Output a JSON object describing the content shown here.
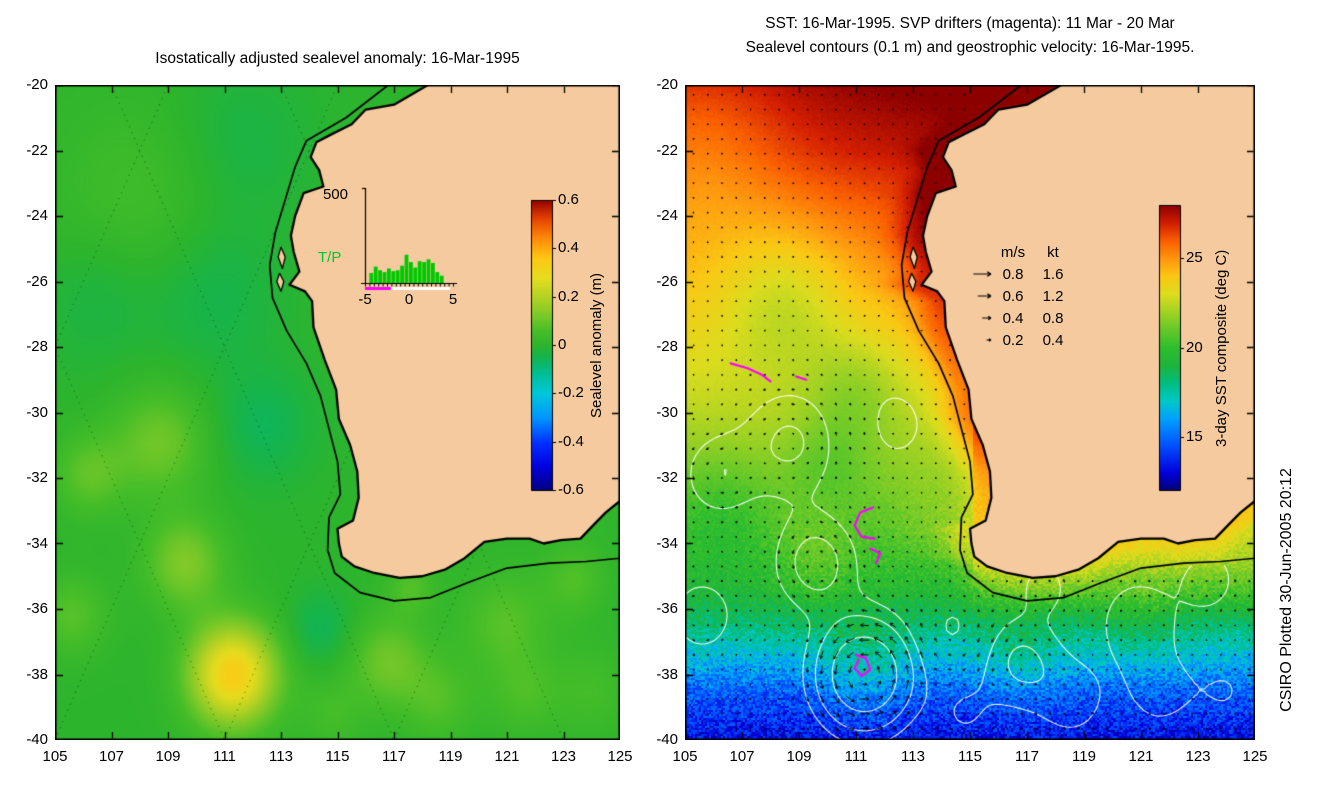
{
  "window": {
    "credit": "CSIRO Plotted 30-Jun-2005 20:12"
  },
  "axes": {
    "xlim": [
      105,
      125
    ],
    "ylim": [
      -40,
      -20
    ],
    "xticks": [
      105,
      107,
      109,
      111,
      113,
      115,
      117,
      119,
      121,
      123,
      125
    ],
    "yticks": [
      -20,
      -22,
      -24,
      -26,
      -28,
      -30,
      -32,
      -34,
      -36,
      -38,
      -40
    ]
  },
  "colors": {
    "land": "#F4CA9E",
    "coast": "#000000",
    "contour": "#FFFFFF",
    "drifter": "#FF00FF",
    "arrow": "#000000"
  },
  "left_panel": {
    "title": "Isostatically adjusted sealevel anomaly: 16-Mar-1995",
    "colorbar": {
      "label": "Sealevel anomaly (m)",
      "ticks": [
        0.6,
        0.4,
        0.2,
        0,
        -0.2,
        -0.4,
        -0.6
      ],
      "tick_labels": [
        "0.6",
        "0.4",
        "0.2",
        "0",
        "-0.2",
        "-0.4",
        "-0.6"
      ],
      "min": -0.6,
      "max": 0.6
    },
    "inset": {
      "ytop_label": "500",
      "series_label": "T/P",
      "series_label_color": "#00C832",
      "xtick_labels": [
        "-5",
        "0",
        "5"
      ],
      "bar_color": "#00C800",
      "underline_left_color": "#FF00FF",
      "underline_right_color": "#FFFFFF"
    }
  },
  "right_panel": {
    "title_line1": "SST: 16-Mar-1995. SVP drifters (magenta): 11 Mar - 20 Mar",
    "title_line2": "Sealevel contours (0.1 m) and geostrophic velocity: 16-Mar-1995.",
    "colorbar": {
      "label": "3-day SST composite (deg C)",
      "ticks": [
        25,
        20,
        15
      ],
      "tick_labels": [
        "25",
        "20",
        "15"
      ],
      "min": 12,
      "max": 28
    },
    "velocity_legend": {
      "headers": [
        "m/s",
        "kt"
      ],
      "rows": [
        [
          "0.8",
          "1.6"
        ],
        [
          "0.6",
          "1.2"
        ],
        [
          "0.4",
          "0.8"
        ],
        [
          "0.2",
          "0.4"
        ]
      ]
    }
  },
  "chart_data": [
    {
      "type": "heatmap",
      "panel": "left",
      "title": "Isostatically adjusted sealevel anomaly: 16-Mar-1995",
      "variable": "sealevel anomaly",
      "units": "m",
      "xlim": [
        105,
        125
      ],
      "ylim": [
        -40,
        -20
      ],
      "colorbar_range": [
        -0.6,
        0.6
      ],
      "colorbar_ticks": [
        0.6,
        0.4,
        0.2,
        0,
        -0.2,
        -0.4,
        -0.6
      ],
      "colormap_stops": [
        [
          -0.6,
          "#000080"
        ],
        [
          -0.5,
          "#0000E0"
        ],
        [
          -0.4,
          "#0032FF"
        ],
        [
          -0.3,
          "#0096FF"
        ],
        [
          -0.2,
          "#00C8DC"
        ],
        [
          -0.12,
          "#00BE96"
        ],
        [
          -0.05,
          "#14B450"
        ],
        [
          0,
          "#2DB42D"
        ],
        [
          0.06,
          "#46BE28"
        ],
        [
          0.12,
          "#78C828"
        ],
        [
          0.2,
          "#B4D223"
        ],
        [
          0.28,
          "#E6DC1E"
        ],
        [
          0.36,
          "#FFC814"
        ],
        [
          0.44,
          "#FF8C0A"
        ],
        [
          0.52,
          "#E64600"
        ],
        [
          0.6,
          "#960000"
        ]
      ],
      "anomaly_features": [
        [
          111.3,
          -38.0,
          0.34,
          1.1
        ],
        [
          109.6,
          -34.6,
          0.13,
          1.0
        ],
        [
          108.7,
          -30.9,
          0.11,
          1.2
        ],
        [
          106.2,
          -31.9,
          0.09,
          0.9
        ],
        [
          105.6,
          -36.2,
          0.08,
          0.9
        ],
        [
          116.8,
          -37.6,
          0.11,
          1.0
        ],
        [
          120.9,
          -36.4,
          0.08,
          1.1
        ],
        [
          123.4,
          -35.1,
          0.07,
          0.8
        ],
        [
          118.6,
          -38.8,
          0.07,
          0.9
        ],
        [
          121.6,
          -38.6,
          0.06,
          0.9
        ],
        [
          117.6,
          -35.3,
          0.07,
          0.6
        ],
        [
          123.8,
          -30.6,
          0.05,
          1.4
        ],
        [
          112.4,
          -30.4,
          -0.06,
          1.2
        ],
        [
          110.6,
          -26.4,
          -0.05,
          1.6
        ],
        [
          114.4,
          -36.6,
          -0.06,
          0.8
        ],
        [
          108.0,
          -23.5,
          0.05,
          2.2
        ],
        [
          111.5,
          -21.8,
          -0.04,
          1.8
        ],
        [
          106.5,
          -26.5,
          -0.04,
          1.5
        ],
        [
          124.0,
          -38.5,
          0.05,
          1.0
        ],
        [
          114.8,
          -39.2,
          0.05,
          0.8
        ]
      ],
      "satellite_tracks": [
        [
          [
            99,
            -40
          ],
          [
            109,
            -20
          ]
        ],
        [
          [
            105,
            -40
          ],
          [
            115,
            -20
          ]
        ],
        [
          [
            111,
            -40
          ],
          [
            121,
            -20
          ]
        ],
        [
          [
            117,
            -40
          ],
          [
            127,
            -20
          ]
        ],
        [
          [
            93,
            -40
          ],
          [
            103,
            -20
          ]
        ],
        [
          [
            101,
            -20
          ],
          [
            111,
            -40
          ]
        ],
        [
          [
            107,
            -20
          ],
          [
            117,
            -40
          ]
        ],
        [
          [
            113,
            -20
          ],
          [
            123,
            -40
          ]
        ],
        [
          [
            95,
            -20
          ],
          [
            105,
            -40
          ]
        ],
        [
          [
            119,
            -20
          ],
          [
            129,
            -40
          ]
        ]
      ],
      "inset_histogram": {
        "label": "T/P",
        "ymax": 500,
        "xrange": [
          -5,
          5
        ],
        "bin_start": -4.5,
        "bin_width": 0.5,
        "heights": [
          55,
          90,
          70,
          60,
          80,
          65,
          70,
          95,
          155,
          115,
          85,
          120,
          115,
          130,
          110,
          60,
          40
        ]
      }
    },
    {
      "type": "heatmap",
      "panel": "right",
      "title": "SST: 16-Mar-1995. SVP drifters (magenta): 11 Mar - 20 Mar. Sealevel contours (0.1 m) and geostrophic velocity: 16-Mar-1995.",
      "variable": "3-day SST composite",
      "units": "deg C",
      "xlim": [
        105,
        125
      ],
      "ylim": [
        -40,
        -20
      ],
      "colorbar_range": [
        12,
        28
      ],
      "colorbar_ticks": [
        25,
        20,
        15
      ],
      "colormap_stops": [
        [
          12,
          "#000078"
        ],
        [
          13,
          "#0000DC"
        ],
        [
          14.5,
          "#0050FF"
        ],
        [
          16,
          "#00A0FF"
        ],
        [
          17,
          "#00C8C8"
        ],
        [
          18,
          "#00BE82"
        ],
        [
          19,
          "#1EB43C"
        ],
        [
          20,
          "#2DBE2D"
        ],
        [
          21,
          "#64C828"
        ],
        [
          22,
          "#A0D223"
        ],
        [
          23,
          "#DCDC1E"
        ],
        [
          24,
          "#FAC814"
        ],
        [
          25,
          "#FF960F"
        ],
        [
          26,
          "#FA5F00"
        ],
        [
          27,
          "#D21E00"
        ],
        [
          28,
          "#8C0000"
        ]
      ],
      "sst_vs_lat": [
        [
          -40,
          13.2
        ],
        [
          -38.5,
          14.8
        ],
        [
          -37.5,
          16.6
        ],
        [
          -36.5,
          18.2
        ],
        [
          -35.5,
          19.4
        ],
        [
          -34,
          20.4
        ],
        [
          -32,
          21.6
        ],
        [
          -30,
          22.8
        ],
        [
          -28,
          24
        ],
        [
          -26,
          25.2
        ],
        [
          -24,
          26.4
        ],
        [
          -22,
          27.8
        ],
        [
          -20,
          28.8
        ]
      ],
      "sst_anomaly_features": [
        [
          108.5,
          -26.5,
          -1.6,
          1.6
        ],
        [
          111.0,
          -29.3,
          -1.2,
          1.2
        ],
        [
          106.2,
          -33.0,
          -0.9,
          1.2
        ],
        [
          110.0,
          -31.5,
          -0.8,
          1.0
        ],
        [
          111.3,
          -38.0,
          1.2,
          1.1
        ],
        [
          109.6,
          -34.6,
          0.9,
          1.0
        ],
        [
          116.8,
          -37.6,
          1.0,
          1.0
        ],
        [
          120.9,
          -36.4,
          0.7,
          1.1
        ],
        [
          105.8,
          -22.0,
          -1.0,
          2.0
        ],
        [
          115.3,
          -30.3,
          0.9,
          0.9
        ],
        [
          113.8,
          -33.5,
          0.6,
          1.0
        ]
      ],
      "contour_levels_m": [
        -0.05,
        0.05,
        0.1,
        0.2
      ],
      "drifter_tracks": [
        [
          [
            106.6,
            -28.5
          ],
          [
            107.2,
            -28.65
          ],
          [
            107.7,
            -28.85
          ],
          [
            108.0,
            -29.05
          ]
        ],
        [
          [
            111.6,
            -32.9
          ],
          [
            111.15,
            -33.05
          ],
          [
            110.95,
            -33.45
          ],
          [
            111.2,
            -33.8
          ],
          [
            111.65,
            -33.85
          ]
        ],
        [
          [
            111.5,
            -34.15
          ],
          [
            111.85,
            -34.3
          ],
          [
            111.7,
            -34.6
          ]
        ],
        [
          [
            111.0,
            -37.4
          ],
          [
            111.35,
            -37.5
          ],
          [
            111.5,
            -37.85
          ],
          [
            111.2,
            -38.05
          ],
          [
            110.95,
            -37.8
          ],
          [
            111.1,
            -37.55
          ]
        ],
        [
          [
            108.9,
            -28.9
          ],
          [
            109.25,
            -29.0
          ]
        ]
      ],
      "velocity_legend_ms": [
        0.8,
        0.6,
        0.4,
        0.2
      ],
      "velocity_legend_kt": [
        1.6,
        1.2,
        0.8,
        0.4
      ]
    }
  ],
  "geo": {
    "coastline": [
      [
        118.2,
        -20
      ],
      [
        117.0,
        -20.6
      ],
      [
        116.0,
        -20.75
      ],
      [
        115.5,
        -21.2
      ],
      [
        114.8,
        -21.5
      ],
      [
        114.25,
        -21.75
      ],
      [
        114.05,
        -22.2
      ],
      [
        114.35,
        -22.6
      ],
      [
        114.5,
        -23.1
      ],
      [
        113.8,
        -23.3
      ],
      [
        113.5,
        -24.0
      ],
      [
        113.35,
        -24.6
      ],
      [
        113.45,
        -25.1
      ],
      [
        113.65,
        -25.7
      ],
      [
        113.3,
        -26.1
      ],
      [
        113.85,
        -26.3
      ],
      [
        114.1,
        -26.6
      ],
      [
        114.15,
        -27.4
      ],
      [
        114.55,
        -28.4
      ],
      [
        114.95,
        -29.3
      ],
      [
        115.05,
        -30.2
      ],
      [
        115.45,
        -31.0
      ],
      [
        115.7,
        -31.8
      ],
      [
        115.75,
        -32.6
      ],
      [
        115.55,
        -33.3
      ],
      [
        115.0,
        -33.55
      ],
      [
        115.05,
        -34.0
      ],
      [
        115.15,
        -34.4
      ],
      [
        115.6,
        -34.7
      ],
      [
        116.3,
        -34.9
      ],
      [
        117.2,
        -35.05
      ],
      [
        118.0,
        -35.0
      ],
      [
        118.8,
        -34.8
      ],
      [
        119.5,
        -34.45
      ],
      [
        120.2,
        -33.95
      ],
      [
        121.0,
        -33.85
      ],
      [
        121.8,
        -33.85
      ],
      [
        122.3,
        -34.0
      ],
      [
        122.9,
        -33.9
      ],
      [
        123.6,
        -33.85
      ],
      [
        124.1,
        -33.4
      ],
      [
        124.5,
        -33.05
      ],
      [
        125.0,
        -32.7
      ]
    ],
    "islands": [
      [
        [
          113.0,
          -24.95
        ],
        [
          113.15,
          -25.25
        ],
        [
          113.05,
          -25.6
        ],
        [
          112.9,
          -25.25
        ]
      ],
      [
        [
          112.95,
          -25.75
        ],
        [
          113.1,
          -26.0
        ],
        [
          113.0,
          -26.3
        ],
        [
          112.85,
          -26.0
        ]
      ]
    ],
    "isobath": [
      [
        116.8,
        -20.0
      ],
      [
        115.3,
        -21.0
      ],
      [
        113.9,
        -21.7
      ],
      [
        113.5,
        -22.5
      ],
      [
        113.15,
        -23.5
      ],
      [
        112.8,
        -24.5
      ],
      [
        112.6,
        -25.5
      ],
      [
        112.7,
        -26.5
      ],
      [
        113.2,
        -27.5
      ],
      [
        113.9,
        -28.5
      ],
      [
        114.4,
        -29.5
      ],
      [
        114.7,
        -30.5
      ],
      [
        115.0,
        -31.5
      ],
      [
        115.1,
        -32.5
      ],
      [
        114.7,
        -33.2
      ],
      [
        114.65,
        -34.2
      ],
      [
        114.9,
        -34.9
      ],
      [
        115.8,
        -35.5
      ],
      [
        117.0,
        -35.75
      ],
      [
        118.3,
        -35.65
      ],
      [
        119.6,
        -35.2
      ],
      [
        121.0,
        -34.75
      ],
      [
        122.5,
        -34.6
      ],
      [
        123.8,
        -34.55
      ],
      [
        125.0,
        -34.45
      ]
    ],
    "west_coast_lon_by_lat": [
      [
        -34.7,
        115.6
      ],
      [
        -34.4,
        115.15
      ],
      [
        -33.55,
        115.0
      ],
      [
        -33.3,
        115.55
      ],
      [
        -32.6,
        115.75
      ],
      [
        -31.8,
        115.7
      ],
      [
        -31.0,
        115.45
      ],
      [
        -30.2,
        115.05
      ],
      [
        -29.3,
        114.95
      ],
      [
        -28.4,
        114.55
      ],
      [
        -27.4,
        114.15
      ],
      [
        -26.6,
        114.1
      ],
      [
        -26.1,
        113.3
      ],
      [
        -25.7,
        113.65
      ],
      [
        -24.6,
        113.35
      ],
      [
        -23.3,
        113.8
      ],
      [
        -22.6,
        114.35
      ],
      [
        -21.9,
        114.2
      ],
      [
        -21.5,
        114.8
      ],
      [
        -20.75,
        116.0
      ],
      [
        -20,
        118.2
      ]
    ],
    "south_coast_lat_by_lon": [
      [
        115.15,
        -34.4
      ],
      [
        116.3,
        -34.9
      ],
      [
        117.2,
        -35.05
      ],
      [
        118.0,
        -35.0
      ],
      [
        118.8,
        -34.8
      ],
      [
        119.5,
        -34.45
      ],
      [
        120.2,
        -33.95
      ],
      [
        121.0,
        -33.85
      ],
      [
        121.8,
        -33.85
      ],
      [
        122.3,
        -34.0
      ],
      [
        122.9,
        -33.9
      ],
      [
        123.6,
        -33.85
      ],
      [
        124.1,
        -33.4
      ],
      [
        124.5,
        -33.05
      ],
      [
        125,
        -32.7
      ]
    ]
  }
}
